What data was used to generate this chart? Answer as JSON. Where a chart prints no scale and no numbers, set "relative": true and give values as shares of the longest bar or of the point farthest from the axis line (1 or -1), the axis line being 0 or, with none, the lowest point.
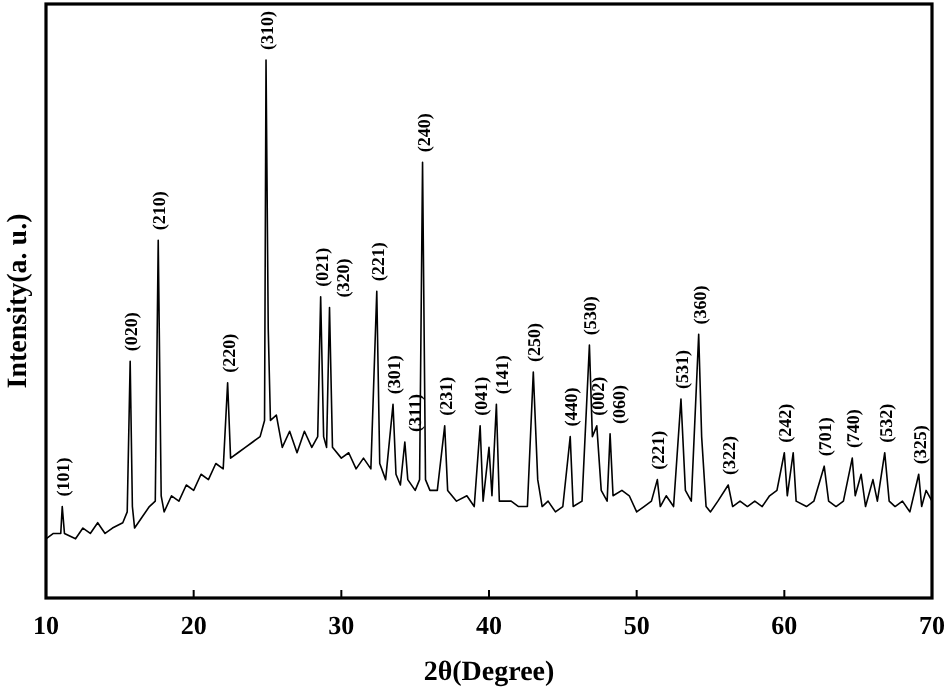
{
  "chart_data": {
    "type": "line",
    "xlabel": "2θ(Degree)",
    "ylabel": "Intensity(a. u.)",
    "relative": true,
    "color": "#000000",
    "xlim": [
      10,
      70
    ],
    "xticks": [
      10,
      20,
      30,
      40,
      50,
      60,
      70
    ],
    "x": [
      10,
      10.5,
      11.0,
      11.1,
      11.25,
      12,
      12.5,
      13,
      13.5,
      14,
      14.5,
      15.2,
      15.5,
      15.7,
      15.85,
      16,
      16.5,
      17,
      17.4,
      17.6,
      17.8,
      18,
      18.5,
      19,
      19.5,
      20,
      20.5,
      21,
      21.5,
      22,
      22.3,
      22.5,
      23,
      23.5,
      24,
      24.5,
      24.8,
      24.9,
      25.05,
      25.2,
      25.6,
      26,
      26.5,
      27,
      27.5,
      28,
      28.4,
      28.6,
      28.8,
      29.0,
      29.2,
      29.4,
      30,
      30.5,
      31,
      31.5,
      32,
      32.4,
      32.6,
      33,
      33.5,
      33.7,
      34,
      34.3,
      34.5,
      35,
      35.3,
      35.5,
      35.7,
      36,
      36.5,
      37,
      37.2,
      37.8,
      38.5,
      39,
      39.4,
      39.6,
      40.0,
      40.2,
      40.5,
      40.7,
      41.5,
      42,
      42.6,
      43.0,
      43.3,
      43.6,
      44,
      44.5,
      45,
      45.5,
      45.7,
      46.3,
      46.8,
      47.0,
      47.3,
      47.6,
      48,
      48.2,
      48.4,
      49,
      49.5,
      50,
      50.5,
      51,
      51.4,
      51.6,
      52,
      52.5,
      53.0,
      53.3,
      53.7,
      54.2,
      54.4,
      54.7,
      55,
      55.5,
      56.2,
      56.5,
      57,
      57.5,
      58,
      58.5,
      59,
      59.5,
      60.0,
      60.2,
      60.6,
      60.8,
      61.5,
      62,
      62.7,
      63,
      63.5,
      64,
      64.6,
      64.8,
      65.2,
      65.5,
      66,
      66.3,
      66.8,
      67.1,
      67.5,
      68,
      68.5,
      69.1,
      69.3,
      69.6,
      70
    ],
    "values": [
      0.11,
      0.12,
      0.12,
      0.17,
      0.12,
      0.11,
      0.13,
      0.12,
      0.14,
      0.12,
      0.13,
      0.14,
      0.16,
      0.44,
      0.17,
      0.13,
      0.15,
      0.17,
      0.18,
      0.665,
      0.19,
      0.16,
      0.19,
      0.18,
      0.21,
      0.2,
      0.23,
      0.22,
      0.25,
      0.24,
      0.4,
      0.26,
      0.27,
      0.28,
      0.29,
      0.3,
      0.33,
      1.0,
      0.5,
      0.33,
      0.34,
      0.28,
      0.31,
      0.27,
      0.31,
      0.28,
      0.3,
      0.56,
      0.3,
      0.28,
      0.54,
      0.28,
      0.26,
      0.27,
      0.24,
      0.26,
      0.24,
      0.57,
      0.25,
      0.22,
      0.36,
      0.23,
      0.21,
      0.29,
      0.22,
      0.2,
      0.22,
      0.81,
      0.22,
      0.2,
      0.2,
      0.32,
      0.2,
      0.18,
      0.19,
      0.17,
      0.32,
      0.18,
      0.28,
      0.19,
      0.36,
      0.18,
      0.18,
      0.17,
      0.17,
      0.42,
      0.22,
      0.17,
      0.18,
      0.16,
      0.17,
      0.3,
      0.17,
      0.18,
      0.47,
      0.3,
      0.32,
      0.2,
      0.18,
      0.305,
      0.19,
      0.2,
      0.19,
      0.16,
      0.17,
      0.18,
      0.22,
      0.17,
      0.19,
      0.17,
      0.37,
      0.2,
      0.18,
      0.49,
      0.3,
      0.17,
      0.16,
      0.18,
      0.21,
      0.17,
      0.18,
      0.17,
      0.18,
      0.17,
      0.19,
      0.2,
      0.27,
      0.19,
      0.27,
      0.18,
      0.17,
      0.18,
      0.245,
      0.18,
      0.17,
      0.18,
      0.26,
      0.19,
      0.23,
      0.17,
      0.22,
      0.18,
      0.27,
      0.18,
      0.17,
      0.18,
      0.16,
      0.23,
      0.17,
      0.2,
      0.18
    ],
    "annotations": [
      {
        "text": "(101)",
        "x": 11.1,
        "y": 0.17
      },
      {
        "text": "(020)",
        "x": 15.7,
        "y": 0.44
      },
      {
        "text": "(210)",
        "x": 17.6,
        "y": 0.665
      },
      {
        "text": "(220)",
        "x": 22.3,
        "y": 0.4
      },
      {
        "text": "(310)",
        "x": 24.9,
        "y": 1.0
      },
      {
        "text": "(021)",
        "x": 28.6,
        "y": 0.56
      },
      {
        "text": "(320)",
        "x": 29.2,
        "y": 0.54
      },
      {
        "text": "(221)",
        "x": 32.4,
        "y": 0.57
      },
      {
        "text": "(301)",
        "x": 33.5,
        "y": 0.36
      },
      {
        "text": "(311)",
        "x": 34.3,
        "y": 0.29
      },
      {
        "text": "(240)",
        "x": 35.5,
        "y": 0.81
      },
      {
        "text": "(231)",
        "x": 37.0,
        "y": 0.32
      },
      {
        "text": "(041)",
        "x": 39.4,
        "y": 0.32
      },
      {
        "text": "(141)",
        "x": 40.5,
        "y": 0.36
      },
      {
        "text": "(250)",
        "x": 43.0,
        "y": 0.42
      },
      {
        "text": "(440)",
        "x": 45.5,
        "y": 0.3
      },
      {
        "text": "(530)",
        "x": 46.8,
        "y": 0.47
      },
      {
        "text": "(002)",
        "x": 47.3,
        "y": 0.32
      },
      {
        "text": "(060)",
        "x": 48.2,
        "y": 0.305
      },
      {
        "text": "(221)",
        "x": 51.4,
        "y": 0.22
      },
      {
        "text": "(531)",
        "x": 53.0,
        "y": 0.37
      },
      {
        "text": "(360)",
        "x": 54.2,
        "y": 0.49
      },
      {
        "text": "(322)",
        "x": 56.2,
        "y": 0.21
      },
      {
        "text": "(242)",
        "x": 60.0,
        "y": 0.27
      },
      {
        "text": "(701)",
        "x": 62.7,
        "y": 0.245
      },
      {
        "text": "(740)",
        "x": 64.6,
        "y": 0.26
      },
      {
        "text": "(532)",
        "x": 66.8,
        "y": 0.27
      },
      {
        "text": "(325)",
        "x": 69.1,
        "y": 0.23
      }
    ]
  }
}
